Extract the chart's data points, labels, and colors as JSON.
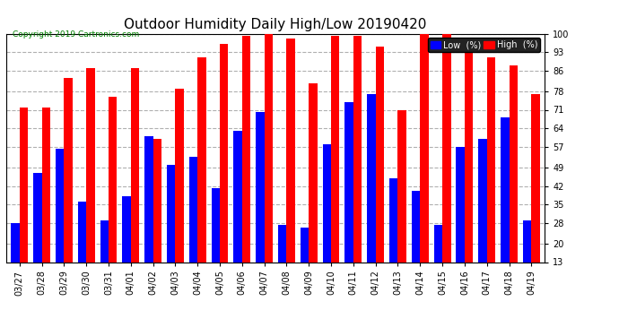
{
  "title": "Outdoor Humidity Daily High/Low 20190420",
  "copyright": "Copyright 2019 Cartronics.com",
  "legend_low": "Low  (%)",
  "legend_high": "High  (%)",
  "dates": [
    "03/27",
    "03/28",
    "03/29",
    "03/30",
    "03/31",
    "04/01",
    "04/02",
    "04/03",
    "04/04",
    "04/05",
    "04/06",
    "04/07",
    "04/08",
    "04/09",
    "04/10",
    "04/11",
    "04/12",
    "04/13",
    "04/14",
    "04/15",
    "04/16",
    "04/17",
    "04/18",
    "04/19"
  ],
  "high": [
    72,
    72,
    83,
    87,
    76,
    87,
    60,
    79,
    91,
    96,
    99,
    100,
    98,
    81,
    99,
    99,
    95,
    71,
    100,
    100,
    96,
    91,
    88,
    77
  ],
  "low": [
    28,
    47,
    56,
    36,
    29,
    38,
    61,
    50,
    53,
    41,
    63,
    70,
    27,
    26,
    58,
    74,
    77,
    45,
    40,
    27,
    57,
    60,
    68,
    29
  ],
  "bar_color_low": "#0000ff",
  "bar_color_high": "#ff0000",
  "background_color": "#ffffff",
  "plot_bg_color": "#ffffff",
  "grid_color": "#b0b0b0",
  "ylim_min": 13,
  "ylim_max": 100,
  "yticks": [
    13,
    20,
    28,
    35,
    42,
    49,
    57,
    64,
    71,
    78,
    86,
    93,
    100
  ],
  "title_fontsize": 11,
  "tick_fontsize": 7,
  "bar_width": 0.38,
  "legend_bg_low": "#0000ff",
  "legend_bg_high": "#ff0000"
}
